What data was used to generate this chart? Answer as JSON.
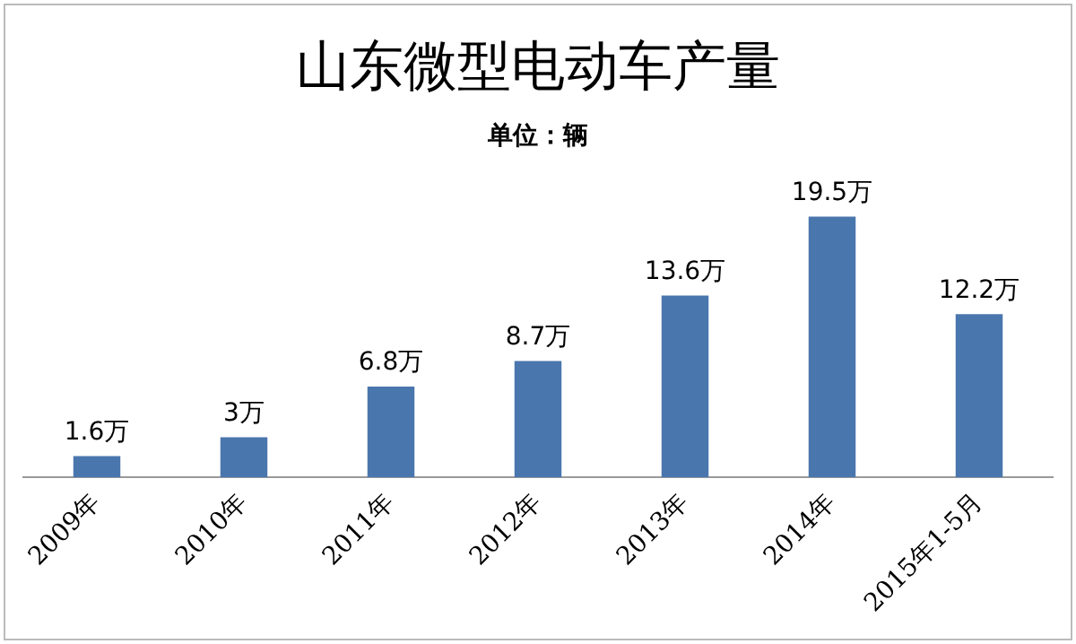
{
  "chart_data": {
    "type": "bar",
    "title": "山东微型电动车产量",
    "subtitle": "单位：辆",
    "categories": [
      "2009年",
      "2010年",
      "2011年",
      "2012年",
      "2013年",
      "2014年",
      "2015年1-5月"
    ],
    "values": [
      1.6,
      3,
      6.8,
      8.7,
      13.6,
      19.5,
      12.2
    ],
    "value_labels": [
      "1.6万",
      "3万",
      "6.8万",
      "8.7万",
      "13.6万",
      "19.5万",
      "12.2万"
    ],
    "color": "#4a76ae",
    "grid": false,
    "legend": false
  }
}
